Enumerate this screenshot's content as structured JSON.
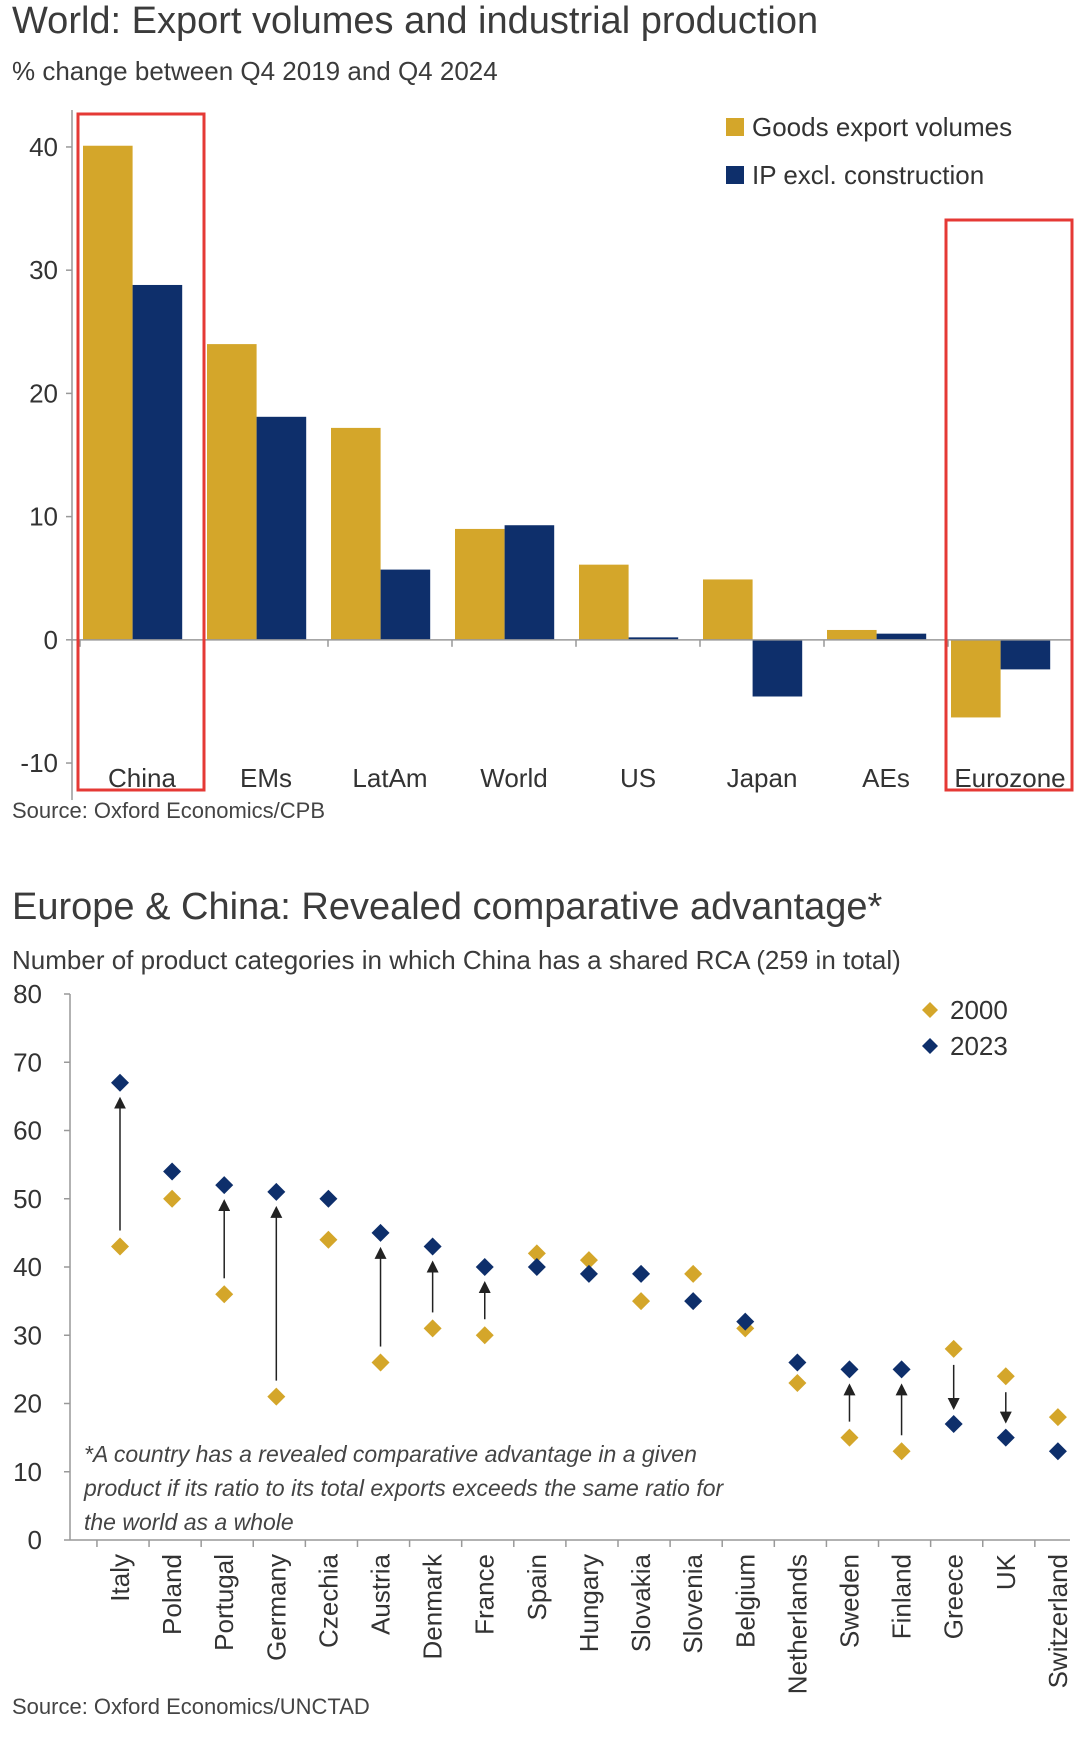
{
  "chart_data": [
    {
      "type": "bar",
      "title": "World: Export volumes and industrial production",
      "subtitle": "% change between Q4 2019 and Q4 2024",
      "source": "Source: Oxford Economics/CPB",
      "categories": [
        "China",
        "EMs",
        "LatAm",
        "World",
        "US",
        "Japan",
        "AEs",
        "Eurozone"
      ],
      "series": [
        {
          "name": "Goods export volumes",
          "color": "#D4A62A",
          "values": [
            40.1,
            24.0,
            17.2,
            9.0,
            6.1,
            4.9,
            0.8,
            -6.3
          ]
        },
        {
          "name": "IP excl. construction",
          "color": "#0E2F6B",
          "values": [
            28.8,
            18.1,
            5.7,
            9.3,
            0.2,
            -4.6,
            0.5,
            -2.4
          ]
        }
      ],
      "yticks": [
        "40",
        "30",
        "20",
        "10",
        "0",
        "-10"
      ],
      "ylim": [
        -13,
        43
      ],
      "legend_position": "top-right",
      "highlighted_categories": [
        "China",
        "Eurozone"
      ],
      "highlight_color": "#E53935",
      "xlabel": "",
      "ylabel": ""
    },
    {
      "type": "scatter",
      "title": "Europe & China: Revealed comparative advantage*",
      "subtitle": "Number of product categories in which China has a shared RCA (259 in total)",
      "source": "Source: Oxford Economics/UNCTAD",
      "note": "*A country has a revealed comparative advantage in a given product if its ratio to its total exports exceeds the same ratio for the world as a whole",
      "categories": [
        "Italy",
        "Poland",
        "Portugal",
        "Germany",
        "Czechia",
        "Austria",
        "Denmark",
        "France",
        "Spain",
        "Hungary",
        "Slovakia",
        "Slovenia",
        "Belgium",
        "Netherlands",
        "Sweden",
        "Finland",
        "Greece",
        "UK",
        "Switzerland"
      ],
      "series": [
        {
          "name": "2000",
          "color": "#D4A62A",
          "values": [
            43,
            50,
            36,
            21,
            44,
            26,
            31,
            30,
            42,
            41,
            35,
            39,
            31,
            23,
            15,
            13,
            28,
            24,
            18
          ]
        },
        {
          "name": "2023",
          "color": "#0E2F6B",
          "values": [
            67,
            54,
            52,
            51,
            50,
            45,
            43,
            40,
            40,
            39,
            39,
            35,
            32,
            26,
            25,
            25,
            17,
            15,
            13
          ]
        }
      ],
      "arrows_for": [
        "Italy",
        "Portugal",
        "Germany",
        "Austria",
        "Denmark",
        "France",
        "Sweden",
        "Finland",
        "Greece",
        "UK"
      ],
      "yticks": [
        "80",
        "70",
        "60",
        "50",
        "40",
        "30",
        "20",
        "10",
        "0"
      ],
      "ylim": [
        0,
        80
      ],
      "legend_position": "top-right",
      "xlabel": "",
      "ylabel": ""
    }
  ]
}
